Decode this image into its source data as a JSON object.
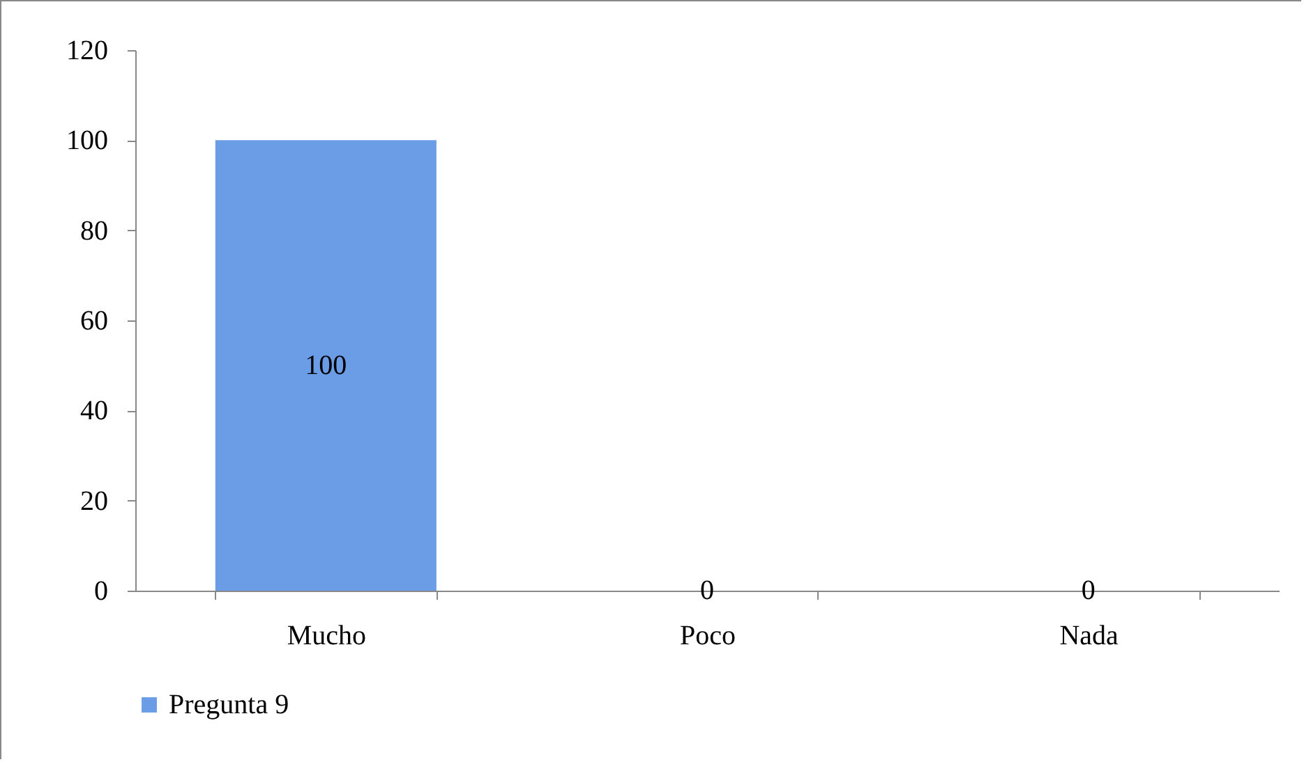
{
  "chart_data": {
    "type": "bar",
    "categories": [
      "Mucho",
      "Poco",
      "Nada"
    ],
    "series": [
      {
        "name": "Pregunta 9",
        "color": "#6a9de6",
        "values": [
          100,
          0,
          0
        ]
      }
    ],
    "ylim": [
      0,
      120
    ],
    "yticks": [
      0,
      20,
      40,
      60,
      80,
      100,
      120
    ],
    "grid": false,
    "legend": "bottom",
    "data_labels": true
  }
}
